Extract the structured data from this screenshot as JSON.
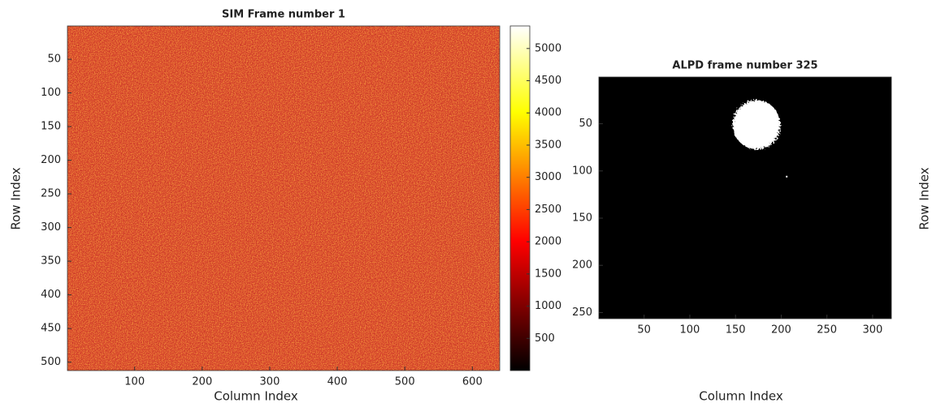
{
  "chart_data": [
    {
      "type": "heatmap",
      "title": "SIM Frame number 1",
      "xlabel": "Column Index",
      "ylabel": "Row Index",
      "xlim": [
        0.5,
        640.5
      ],
      "ylim": [
        0.5,
        512.5
      ],
      "y_reversed": true,
      "xticks": [
        100,
        200,
        300,
        400,
        500,
        600
      ],
      "yticks": [
        50,
        100,
        150,
        200,
        250,
        300,
        350,
        400,
        450,
        500
      ],
      "colormap": "hot",
      "clim": [
        0,
        5350
      ],
      "colorbar_ticks": [
        500,
        1000,
        1500,
        2000,
        2500,
        3000,
        3500,
        4000,
        4500,
        5000
      ]
    },
    {
      "type": "binary_image",
      "title": "ALPD frame number 325",
      "xlabel": "Column Index",
      "ylabel": "Row Index",
      "xlim": [
        0.5,
        320.5
      ],
      "ylim": [
        0.5,
        256.5
      ],
      "y_reversed": true,
      "xticks": [
        50,
        100,
        150,
        200,
        250,
        300
      ],
      "yticks": [
        50,
        100,
        150,
        200,
        250
      ],
      "background": "#000000",
      "foreground": "#ffffff",
      "blobs": [
        {
          "center": [
            173,
            51
          ],
          "radius": 26
        }
      ],
      "spots": [
        [
          206,
          106
        ]
      ]
    }
  ]
}
